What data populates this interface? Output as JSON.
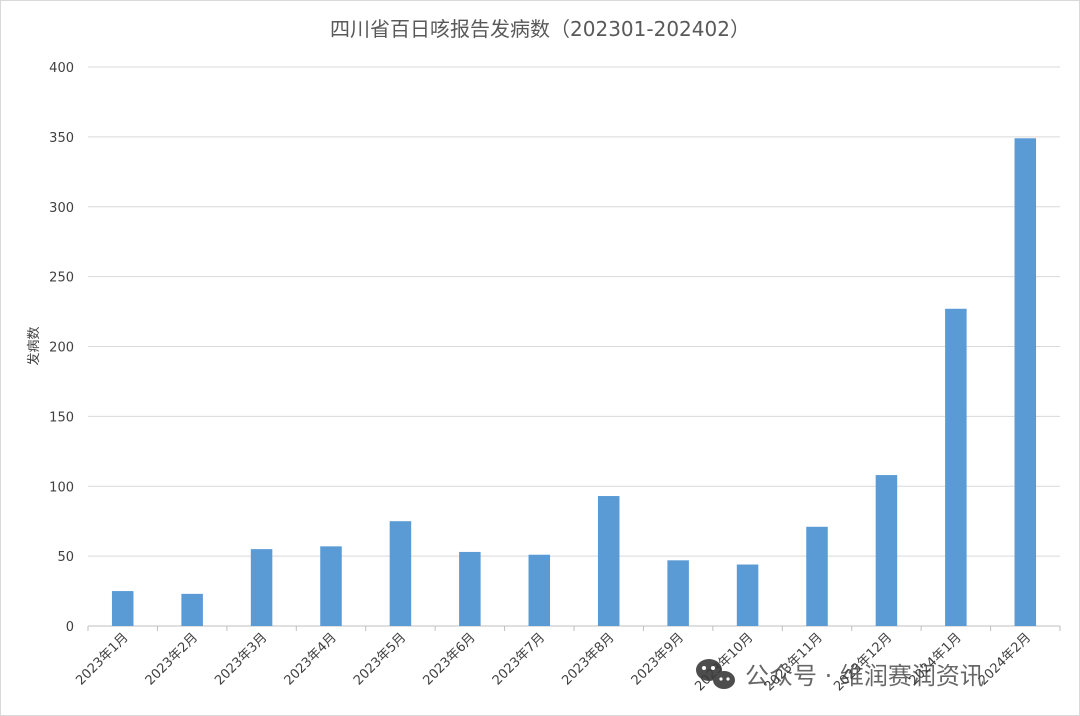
{
  "chart_data": {
    "type": "bar",
    "title": "四川省百日咳报告发病数（202301-202402）",
    "xlabel": "",
    "ylabel": "发病数",
    "categories": [
      "2023年1月",
      "2023年2月",
      "2023年3月",
      "2023年4月",
      "2023年5月",
      "2023年6月",
      "2023年7月",
      "2023年8月",
      "2023年9月",
      "2023年10月",
      "2023年11月",
      "2023年12月",
      "2024年1月",
      "2024年2月"
    ],
    "values": [
      25,
      23,
      55,
      57,
      75,
      53,
      51,
      93,
      47,
      44,
      71,
      108,
      227,
      349
    ],
    "ylim": [
      0,
      400
    ],
    "yticks": [
      0,
      50,
      100,
      150,
      200,
      250,
      300,
      350,
      400
    ],
    "grid": true,
    "legend": "none",
    "bar_color": "#5b9bd5"
  },
  "watermark": {
    "text": "公众号 · 维润赛润资讯",
    "icon": "wechat-icon"
  }
}
